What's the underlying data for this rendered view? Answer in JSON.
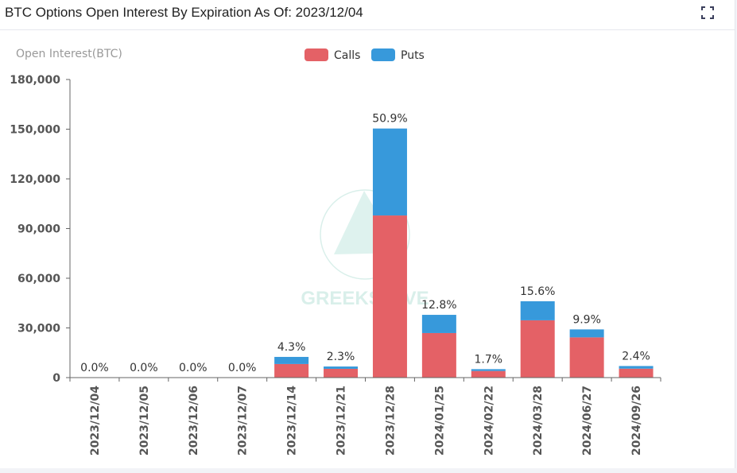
{
  "header": {
    "title": "BTC Options Open Interest By Expiration As Of: 2023/12/04",
    "expand_icon": "fullscreen-icon"
  },
  "watermark": "GREEKS.LIVE",
  "chart_data": {
    "type": "bar",
    "stacked": true,
    "title": "BTC Options Open Interest By Expiration As Of: 2023/12/04",
    "ylabel": "Open Interest(BTC)",
    "xlabel": "",
    "ylim": [
      0,
      180000
    ],
    "yticks": [
      "0",
      "30,000",
      "60,000",
      "90,000",
      "120,000",
      "150,000",
      "180,000"
    ],
    "ytick_values": [
      0,
      30000,
      60000,
      90000,
      120000,
      150000,
      180000
    ],
    "legend": {
      "position": "top-center",
      "entries": [
        "Calls",
        "Puts"
      ]
    },
    "categories": [
      "2023/12/04",
      "2023/12/05",
      "2023/12/06",
      "2023/12/07",
      "2023/12/14",
      "2023/12/21",
      "2023/12/28",
      "2024/01/25",
      "2024/02/22",
      "2024/03/28",
      "2024/06/27",
      "2024/09/26"
    ],
    "series": [
      {
        "name": "Calls",
        "color": "#e46166",
        "values": [
          0,
          0,
          0,
          0,
          8200,
          5300,
          97900,
          26900,
          4000,
          34600,
          24300,
          5400
        ]
      },
      {
        "name": "Puts",
        "color": "#3799db",
        "values": [
          0,
          0,
          0,
          0,
          4300,
          1400,
          52500,
          11000,
          1100,
          11500,
          4800,
          1600
        ]
      }
    ],
    "data_labels": [
      "0.0%",
      "0.0%",
      "0.0%",
      "0.0%",
      "4.3%",
      "2.3%",
      "50.9%",
      "12.8%",
      "1.7%",
      "15.6%",
      "9.9%",
      "2.4%"
    ],
    "grid": false
  }
}
